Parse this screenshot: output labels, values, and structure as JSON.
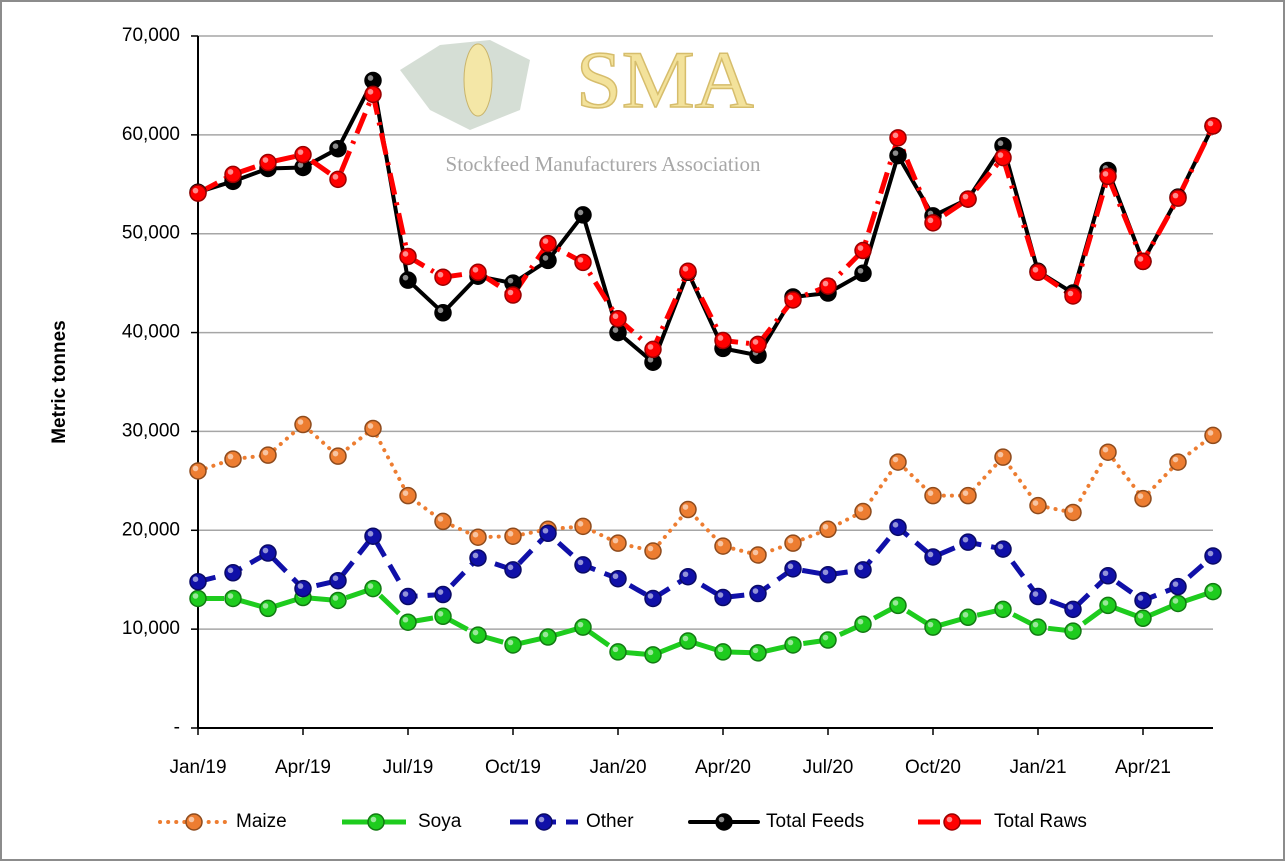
{
  "chart_data": {
    "type": "line",
    "y_label": "Metric tonnes",
    "logo": {
      "text": "SMA",
      "tagline": "Stockfeed Manufacturers Association"
    },
    "categories": [
      "Jan/19",
      null,
      null,
      "Apr/19",
      null,
      null,
      "Jul/19",
      null,
      null,
      "Oct/19",
      null,
      null,
      "Jan/20",
      null,
      null,
      "Apr/20",
      null,
      null,
      "Jul/20",
      null,
      null,
      "Oct/20",
      null,
      null,
      "Jan/21",
      null,
      null,
      "Apr/21",
      null,
      null
    ],
    "ylim": [
      0,
      70000
    ],
    "yticks": [
      {
        "value": 0,
        "label": "-"
      },
      {
        "value": 10000,
        "label": "10,000"
      },
      {
        "value": 20000,
        "label": "20,000"
      },
      {
        "value": 30000,
        "label": "30,000"
      },
      {
        "value": 40000,
        "label": "40,000"
      },
      {
        "value": 50000,
        "label": "50,000"
      },
      {
        "value": 60000,
        "label": "60,000"
      },
      {
        "value": 70000,
        "label": "70,000"
      }
    ],
    "grid": true,
    "legend": "bottom",
    "series": [
      {
        "name": "Maize",
        "color": "#ED7D31",
        "line_style": "dot",
        "values": [
          26000,
          27200,
          27600,
          30700,
          27500,
          30300,
          23500,
          20900,
          19300,
          19400,
          20100,
          20400,
          18700,
          17900,
          22100,
          18400,
          17500,
          18700,
          20100,
          21900,
          26900,
          23500,
          23500,
          27400,
          22500,
          21800,
          27900,
          23200,
          26900,
          29600
        ]
      },
      {
        "name": "Soya",
        "color": "#1ECC1E",
        "line_style": "long-dash",
        "values": [
          13100,
          13100,
          12100,
          13200,
          12900,
          14100,
          10700,
          11300,
          9400,
          8400,
          9200,
          10200,
          7700,
          7400,
          8800,
          7700,
          7600,
          8400,
          8900,
          10500,
          12400,
          10200,
          11200,
          12000,
          10200,
          9800,
          12400,
          11100,
          12600,
          13800
        ]
      },
      {
        "name": "Other",
        "color": "#1010A8",
        "line_style": "dash",
        "values": [
          14800,
          15700,
          17700,
          14100,
          14900,
          19400,
          13300,
          13500,
          17200,
          16000,
          19700,
          16500,
          15100,
          13100,
          15300,
          13200,
          13600,
          16100,
          15500,
          16000,
          20300,
          17300,
          18800,
          18100,
          13300,
          12000,
          15400,
          12900,
          14300,
          17400
        ]
      },
      {
        "name": "Total Feeds",
        "color": "#000000",
        "line_style": "solid",
        "values": [
          54200,
          55300,
          56600,
          56700,
          58600,
          65500,
          45300,
          42000,
          45700,
          45000,
          47300,
          51900,
          40000,
          37000,
          46100,
          38400,
          37700,
          43600,
          44000,
          46000,
          57900,
          51800,
          53500,
          58900,
          46200,
          44000,
          56400,
          47200,
          53700,
          60900
        ]
      },
      {
        "name": "Total Raws",
        "color": "#FF0000",
        "line_style": "dash-dot",
        "values": [
          54100,
          56000,
          57200,
          58000,
          55500,
          64100,
          47700,
          45600,
          46100,
          43800,
          49000,
          47100,
          41400,
          38300,
          46200,
          39200,
          38800,
          43300,
          44700,
          48300,
          59700,
          51100,
          53500,
          57700,
          46100,
          43700,
          55800,
          47200,
          53600,
          60900
        ]
      }
    ]
  }
}
